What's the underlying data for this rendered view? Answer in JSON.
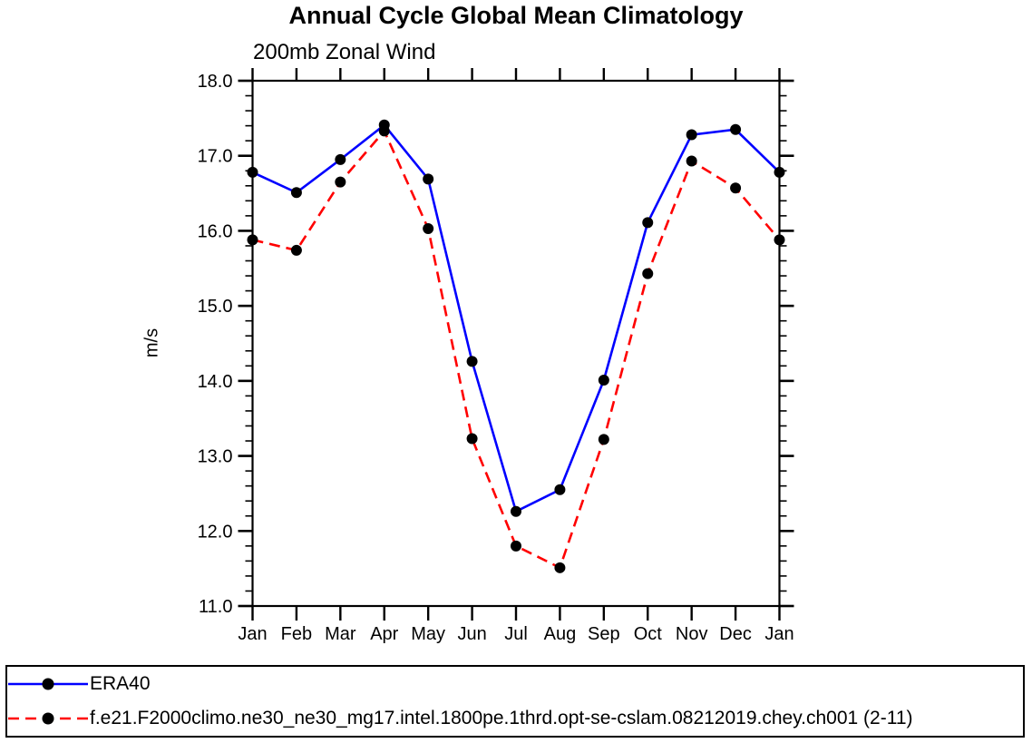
{
  "chart_data": {
    "type": "line",
    "title": "Annual Cycle Global Mean Climatology",
    "subtitle": "200mb Zonal Wind",
    "xlabel": "",
    "ylabel": "m/s",
    "ylim": [
      11.0,
      18.0
    ],
    "y_tick_labels": [
      "11.0",
      "12.0",
      "13.0",
      "14.0",
      "15.0",
      "16.0",
      "17.0",
      "18.0"
    ],
    "y_minor_step": 0.2,
    "x_tick_labels": [
      "Jan",
      "Feb",
      "Mar",
      "Apr",
      "May",
      "Jun",
      "Jul",
      "Aug",
      "Sep",
      "Oct",
      "Nov",
      "Dec",
      "Jan"
    ],
    "grid": false,
    "legend_position": "bottom-outside-box",
    "marker": {
      "shape": "filled-circle",
      "color": "#000000"
    },
    "axis_color": "#000000",
    "series": [
      {
        "name": "ERA40",
        "color": "#0000ff",
        "style": "solid",
        "values": [
          16.78,
          16.51,
          16.95,
          17.41,
          16.69,
          14.26,
          12.26,
          12.55,
          14.01,
          16.11,
          17.28,
          17.35,
          16.78
        ]
      },
      {
        "name": "f.e21.F2000climo.ne30_ne30_mg17.intel.1800pe.1thrd.opt-se-cslam.08212019.chey.ch001 (2-11)",
        "color": "#ff0000",
        "style": "dashed",
        "values": [
          15.88,
          15.74,
          16.65,
          17.33,
          16.03,
          13.23,
          11.8,
          11.51,
          13.22,
          15.43,
          16.93,
          16.57,
          15.88
        ]
      }
    ]
  }
}
